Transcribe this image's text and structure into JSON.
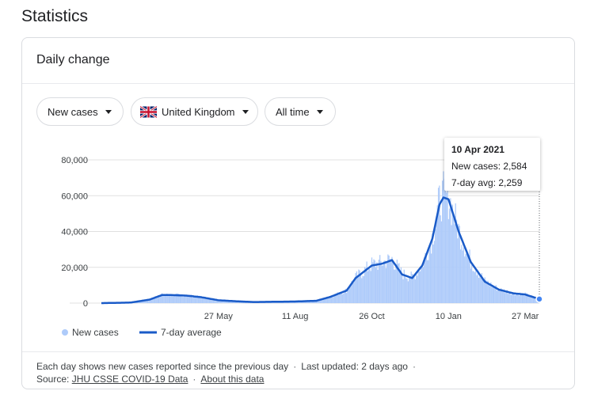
{
  "page": {
    "title": "Statistics"
  },
  "card": {
    "title": "Daily change"
  },
  "filters": {
    "metric": "New cases",
    "region": "United Kingdom",
    "range": "All time"
  },
  "tooltip": {
    "date": "10 Apr 2021",
    "new_cases_label": "New cases: 2,584",
    "avg_label": "7-day avg: 2,259"
  },
  "legend": {
    "bars": "New cases",
    "line": "7-day average"
  },
  "footer": {
    "line1_a": "Each day shows new cases reported since the previous day",
    "line1_b": "Last updated: 2 days ago",
    "source_prefix": "Source:",
    "source_link": "JHU CSSE COVID-19 Data",
    "about_link": "About this data"
  },
  "colors": {
    "bars": "#aecbfa",
    "line": "#1a5bc8",
    "grid": "#e0e0e0"
  },
  "chart_data": {
    "type": "bar",
    "title": "",
    "xlabel": "",
    "ylabel": "",
    "ylim": [
      0,
      80000
    ],
    "yticks": [
      0,
      20000,
      40000,
      60000,
      80000
    ],
    "ytick_labels": [
      "0",
      "20,000",
      "40,000",
      "60,000",
      "80,000"
    ],
    "xtick_labels": [
      "27 May",
      "11 Aug",
      "26 Oct",
      "10 Jan",
      "27 Mar"
    ],
    "xtick_dates": [
      "2020-05-27",
      "2020-08-11",
      "2020-10-26",
      "2021-01-10",
      "2021-03-27"
    ],
    "x_range": [
      "2020-02-01",
      "2021-04-10"
    ],
    "grid": true,
    "legend_position": "bottom-left",
    "series": [
      {
        "name": "New cases",
        "kind": "bar",
        "values_7day_anchor_dates": [
          "2020-02-01",
          "2020-03-01",
          "2020-03-20",
          "2020-04-01",
          "2020-04-10",
          "2020-04-25",
          "2020-05-10",
          "2020-05-27",
          "2020-06-15",
          "2020-07-01",
          "2020-08-11",
          "2020-09-01",
          "2020-09-15",
          "2020-10-01",
          "2020-10-10",
          "2020-10-26",
          "2020-11-05",
          "2020-11-15",
          "2020-11-25",
          "2020-12-05",
          "2020-12-15",
          "2020-12-25",
          "2021-01-01",
          "2021-01-05",
          "2021-01-10",
          "2021-01-20",
          "2021-02-01",
          "2021-02-15",
          "2021-03-01",
          "2021-03-15",
          "2021-03-27",
          "2021-04-10"
        ]
      },
      {
        "name": "7-day average",
        "kind": "line",
        "x": [
          "2020-02-01",
          "2020-03-01",
          "2020-03-20",
          "2020-04-01",
          "2020-04-10",
          "2020-04-25",
          "2020-05-10",
          "2020-05-27",
          "2020-06-15",
          "2020-07-01",
          "2020-08-11",
          "2020-09-01",
          "2020-09-15",
          "2020-10-01",
          "2020-10-10",
          "2020-10-26",
          "2020-11-05",
          "2020-11-15",
          "2020-11-25",
          "2020-12-05",
          "2020-12-15",
          "2020-12-25",
          "2021-01-01",
          "2021-01-05",
          "2021-01-10",
          "2021-01-20",
          "2021-02-01",
          "2021-02-15",
          "2021-03-01",
          "2021-03-15",
          "2021-03-27",
          "2021-04-10"
        ],
        "values": [
          0,
          300,
          2000,
          4500,
          4500,
          4200,
          3300,
          1600,
          1000,
          600,
          900,
          1300,
          3500,
          7000,
          14000,
          21000,
          22000,
          24000,
          16000,
          14000,
          21000,
          36000,
          55000,
          59000,
          58000,
          40000,
          23000,
          12000,
          7500,
          5500,
          4800,
          2259
        ]
      }
    ]
  }
}
